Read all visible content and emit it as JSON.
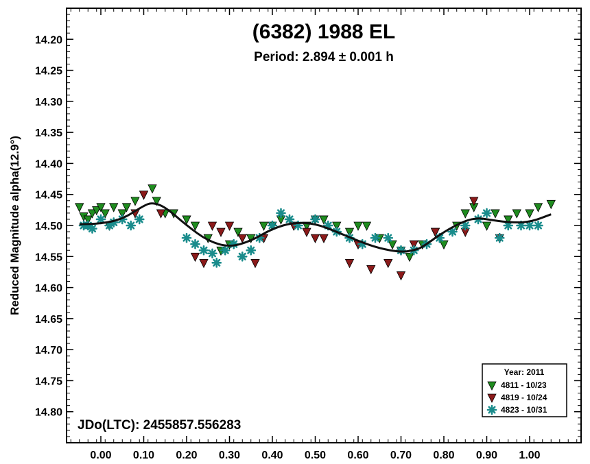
{
  "chart_data": {
    "type": "scatter",
    "title": "(6382) 1988 EL",
    "subtitle": "Period: 2.894 ± 0.001 h",
    "ylabel": "Reduced Magnitude alpha(12.9°)",
    "xlabel": "",
    "xlim": [
      -0.08,
      1.12
    ],
    "ylim": [
      14.15,
      14.85
    ],
    "y_inverted": true,
    "x_ticks": [
      "0.00",
      "0.10",
      "0.20",
      "0.30",
      "0.40",
      "0.50",
      "0.60",
      "0.70",
      "0.80",
      "0.90",
      "1.00"
    ],
    "y_ticks": [
      "14.20",
      "14.25",
      "14.30",
      "14.35",
      "14.40",
      "14.45",
      "14.50",
      "14.55",
      "14.60",
      "14.65",
      "14.70",
      "14.75",
      "14.80"
    ],
    "annotation": "JDo(LTC): 2455857.556283",
    "legend": {
      "position": "bottom-right",
      "title": "Year: 2011",
      "entries": [
        "4811 - 10/23",
        "4819 - 10/24",
        "4823 - 10/31"
      ]
    },
    "colors": {
      "green": "#1f8c1f",
      "darkred": "#8b1a1a",
      "teal": "#1a8c8c",
      "fit": "#111111"
    },
    "fit_curve": {
      "x": [
        -0.05,
        0.0,
        0.05,
        0.1,
        0.12,
        0.15,
        0.2,
        0.25,
        0.3,
        0.35,
        0.4,
        0.45,
        0.5,
        0.55,
        0.6,
        0.65,
        0.7,
        0.73,
        0.75,
        0.8,
        0.85,
        0.88,
        0.9,
        0.95,
        1.0,
        1.05
      ],
      "y": [
        14.498,
        14.497,
        14.49,
        14.468,
        14.463,
        14.47,
        14.5,
        14.525,
        14.535,
        14.525,
        14.505,
        14.495,
        14.497,
        14.51,
        14.525,
        14.537,
        14.543,
        14.54,
        14.535,
        14.51,
        14.492,
        14.488,
        14.49,
        14.495,
        14.495,
        14.482
      ]
    },
    "series": [
      {
        "name": "4811 - 10/23",
        "marker": "triangle-down",
        "color": "#1f8c1f",
        "x": [
          -0.05,
          -0.04,
          -0.03,
          -0.02,
          -0.01,
          0.0,
          0.01,
          0.02,
          0.03,
          0.05,
          0.06,
          0.08,
          0.1,
          0.12,
          0.13,
          0.15,
          0.17,
          0.2,
          0.22,
          0.25,
          0.28,
          0.3,
          0.32,
          0.35,
          0.38,
          0.4,
          0.42,
          0.45,
          0.48,
          0.5,
          0.52,
          0.55,
          0.58,
          0.6,
          0.62,
          0.65,
          0.68,
          0.7,
          0.72,
          0.75,
          0.78,
          0.8,
          0.83,
          0.85,
          0.87,
          0.9,
          0.92,
          0.95,
          0.97,
          1.0,
          1.02,
          1.05
        ],
        "y": [
          14.47,
          14.485,
          14.49,
          14.48,
          14.475,
          14.47,
          14.48,
          14.5,
          14.47,
          14.48,
          14.47,
          14.46,
          14.45,
          14.44,
          14.46,
          14.48,
          14.48,
          14.49,
          14.5,
          14.52,
          14.54,
          14.53,
          14.51,
          14.52,
          14.5,
          14.5,
          14.49,
          14.5,
          14.5,
          14.49,
          14.49,
          14.5,
          14.51,
          14.5,
          14.5,
          14.52,
          14.53,
          14.54,
          14.55,
          14.53,
          14.51,
          14.53,
          14.5,
          14.48,
          14.47,
          14.5,
          14.48,
          14.49,
          14.48,
          14.48,
          14.47,
          14.465
        ]
      },
      {
        "name": "4819 - 10/24",
        "marker": "triangle-down",
        "color": "#8b1a1a",
        "x": [
          0.08,
          0.1,
          0.14,
          0.22,
          0.24,
          0.26,
          0.28,
          0.3,
          0.33,
          0.36,
          0.38,
          0.45,
          0.48,
          0.5,
          0.52,
          0.58,
          0.6,
          0.63,
          0.67,
          0.7,
          0.73,
          0.78,
          0.85,
          0.87,
          0.93
        ],
        "y": [
          14.48,
          14.45,
          14.48,
          14.55,
          14.56,
          14.5,
          14.51,
          14.5,
          14.52,
          14.56,
          14.52,
          14.5,
          14.51,
          14.52,
          14.52,
          14.56,
          14.53,
          14.57,
          14.56,
          14.58,
          14.53,
          14.51,
          14.51,
          14.46,
          14.52
        ]
      },
      {
        "name": "4823 - 10/31",
        "marker": "asterisk",
        "color": "#1a8c8c",
        "x": [
          -0.04,
          -0.03,
          -0.02,
          0.0,
          0.02,
          0.03,
          0.05,
          0.07,
          0.09,
          0.2,
          0.22,
          0.24,
          0.26,
          0.27,
          0.29,
          0.31,
          0.33,
          0.35,
          0.37,
          0.4,
          0.42,
          0.44,
          0.46,
          0.5,
          0.53,
          0.55,
          0.58,
          0.61,
          0.64,
          0.67,
          0.7,
          0.73,
          0.76,
          0.79,
          0.82,
          0.85,
          0.88,
          0.9,
          0.93,
          0.95,
          0.98,
          1.0,
          1.02
        ],
        "y": [
          14.5,
          14.5,
          14.505,
          14.49,
          14.5,
          14.495,
          14.49,
          14.5,
          14.49,
          14.52,
          14.53,
          14.54,
          14.545,
          14.56,
          14.54,
          14.53,
          14.55,
          14.54,
          14.52,
          14.5,
          14.48,
          14.49,
          14.5,
          14.49,
          14.5,
          14.51,
          14.52,
          14.53,
          14.52,
          14.52,
          14.54,
          14.54,
          14.53,
          14.52,
          14.51,
          14.5,
          14.49,
          14.48,
          14.52,
          14.5,
          14.5,
          14.5,
          14.5
        ]
      }
    ]
  }
}
